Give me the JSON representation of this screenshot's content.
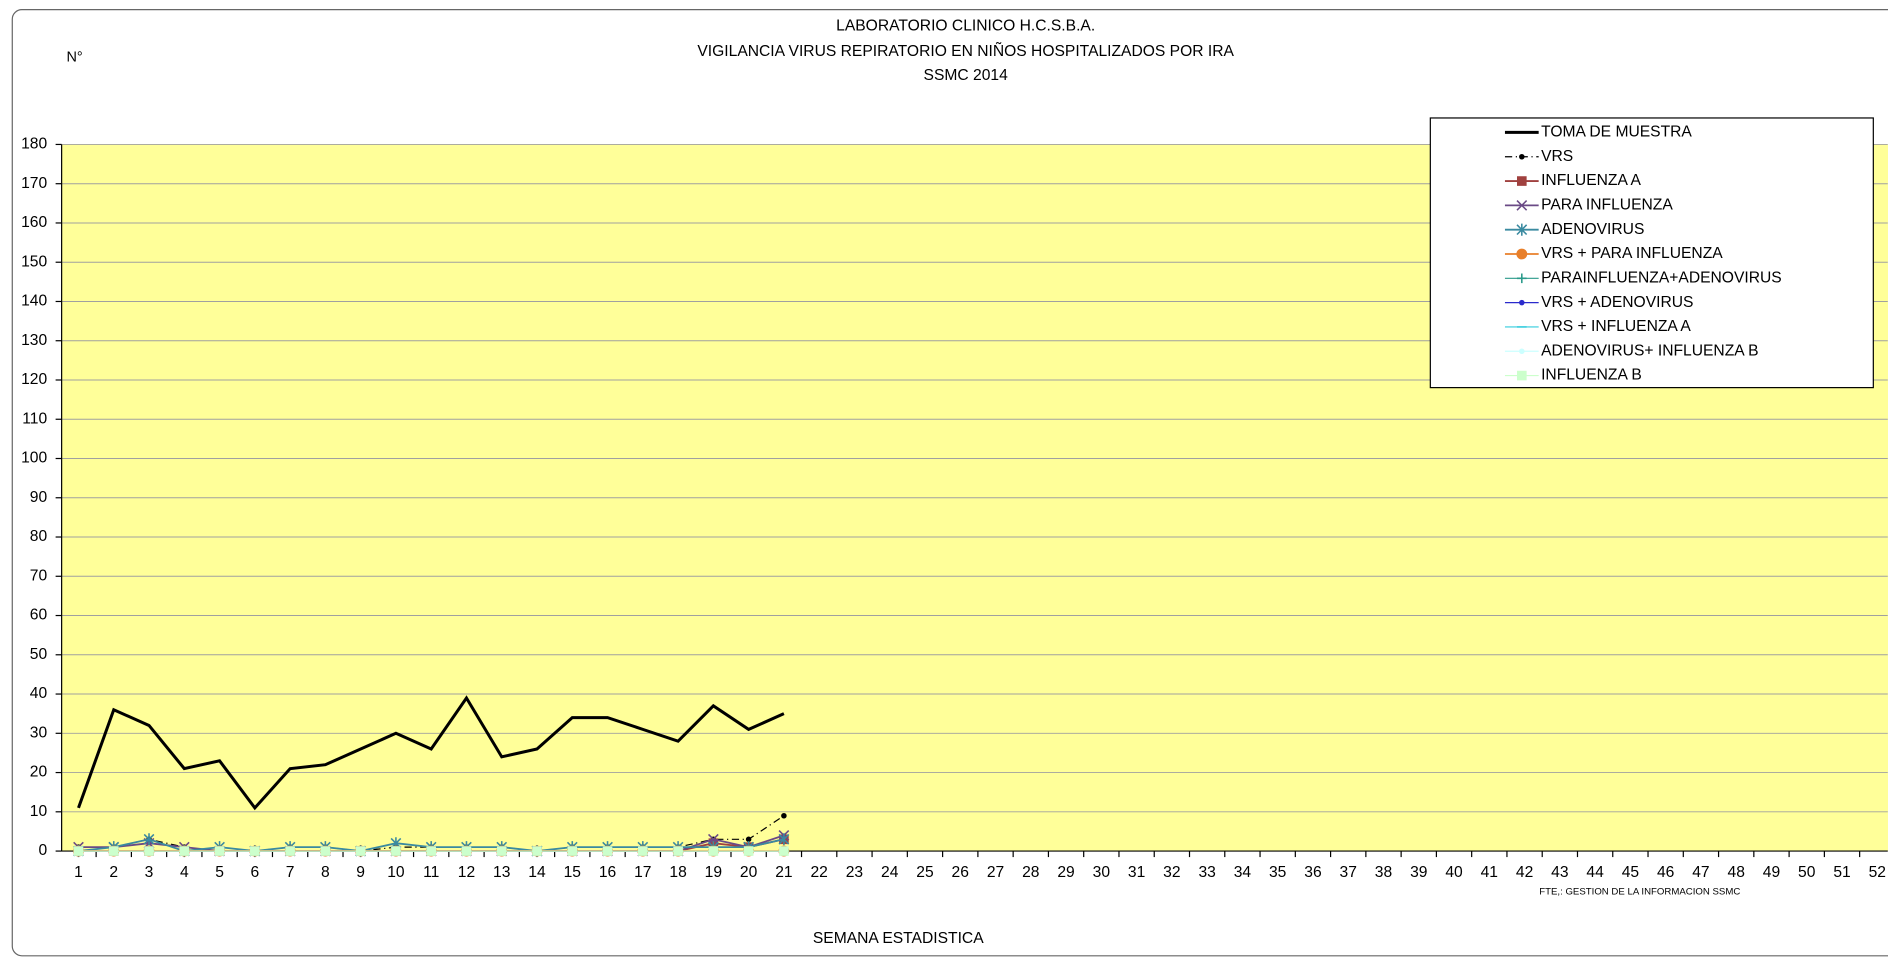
{
  "chart_data": {
    "type": "line",
    "title": [
      "LABORATORIO CLINICO H.C.S.B.A.",
      "VIGILANCIA VIRUS REPIRATORIO EN NIÑOS HOSPITALIZADOS POR IRA",
      "SSMC  2014"
    ],
    "ylabel": "N°",
    "xlabel": "SEMANA ESTADISTICA",
    "source": "FTE,: GESTION DE LA INFORMACION SSMC",
    "categories": [
      1,
      2,
      3,
      4,
      5,
      6,
      7,
      8,
      9,
      10,
      11,
      12,
      13,
      14,
      15,
      16,
      17,
      18,
      19,
      20,
      21,
      22,
      23,
      24,
      25,
      26,
      27,
      28,
      29,
      30,
      31,
      32,
      33,
      34,
      35,
      36,
      37,
      38,
      39,
      40,
      41,
      42,
      43,
      44,
      45,
      46,
      47,
      48,
      49,
      50,
      51,
      52
    ],
    "ylim": [
      0,
      180
    ],
    "yticks": [
      0,
      10,
      20,
      30,
      40,
      50,
      60,
      70,
      80,
      90,
      100,
      110,
      120,
      130,
      140,
      150,
      160,
      170,
      180
    ],
    "grid": true,
    "plot_background": "#ffff99",
    "series": [
      {
        "name": "TOMA DE MUESTRA",
        "color": "#000000",
        "values": [
          11,
          36,
          32,
          21,
          23,
          11,
          21,
          22,
          26,
          30,
          26,
          39,
          24,
          26,
          34,
          34,
          31,
          28,
          37,
          31,
          35,
          null,
          null,
          null,
          null,
          null,
          null,
          null,
          null,
          null,
          null,
          null,
          null,
          null,
          null,
          null,
          null,
          null,
          null,
          null,
          null,
          null,
          null,
          null,
          null,
          null,
          null,
          null,
          null,
          null,
          null,
          null
        ]
      },
      {
        "name": "VRS",
        "color": "#000000",
        "values": [
          1,
          1,
          3,
          1,
          0,
          0,
          1,
          1,
          0,
          1,
          1,
          1,
          1,
          0,
          1,
          1,
          1,
          1,
          3,
          3,
          9,
          null,
          null,
          null,
          null,
          null,
          null,
          null,
          null,
          null,
          null,
          null,
          null,
          null,
          null,
          null,
          null,
          null,
          null,
          null,
          null,
          null,
          null,
          null,
          null,
          null,
          null,
          null,
          null,
          null,
          null,
          null
        ]
      },
      {
        "name": "INFLUENZA A",
        "color": "#a0413f",
        "values": [
          0,
          0,
          0,
          0,
          0,
          0,
          0,
          0,
          0,
          0,
          0,
          0,
          0,
          0,
          0,
          0,
          0,
          0,
          2,
          1,
          3,
          null,
          null,
          null,
          null,
          null,
          null,
          null,
          null,
          null,
          null,
          null,
          null,
          null,
          null,
          null,
          null,
          null,
          null,
          null,
          null,
          null,
          null,
          null,
          null,
          null,
          null,
          null,
          null,
          null,
          null,
          null
        ]
      },
      {
        "name": "PARA INFLUENZA",
        "color": "#6a4a86",
        "values": [
          1,
          1,
          2,
          1,
          0,
          0,
          0,
          0,
          0,
          0,
          0,
          0,
          0,
          0,
          0,
          0,
          0,
          0,
          3,
          1,
          4,
          null,
          null,
          null,
          null,
          null,
          null,
          null,
          null,
          null,
          null,
          null,
          null,
          null,
          null,
          null,
          null,
          null,
          null,
          null,
          null,
          null,
          null,
          null,
          null,
          null,
          null,
          null,
          null,
          null,
          null,
          null
        ]
      },
      {
        "name": "ADENOVIRUS",
        "color": "#3a8aa0",
        "values": [
          0,
          1,
          3,
          0,
          1,
          0,
          1,
          1,
          0,
          2,
          1,
          1,
          1,
          0,
          1,
          1,
          1,
          1,
          1,
          1,
          3,
          null,
          null,
          null,
          null,
          null,
          null,
          null,
          null,
          null,
          null,
          null,
          null,
          null,
          null,
          null,
          null,
          null,
          null,
          null,
          null,
          null,
          null,
          null,
          null,
          null,
          null,
          null,
          null,
          null,
          null,
          null
        ]
      },
      {
        "name": "VRS + PARA INFLUENZA",
        "color": "#e87f2a",
        "values": [
          0,
          0,
          0,
          0,
          0,
          0,
          0,
          0,
          0,
          0,
          0,
          0,
          0,
          0,
          0,
          0,
          0,
          0,
          0,
          0,
          0,
          null,
          null,
          null,
          null,
          null,
          null,
          null,
          null,
          null,
          null,
          null,
          null,
          null,
          null,
          null,
          null,
          null,
          null,
          null,
          null,
          null,
          null,
          null,
          null,
          null,
          null,
          null,
          null,
          null,
          null,
          null
        ]
      },
      {
        "name": "PARAINFLUENZA+ADENOVIRUS",
        "color": "#2a9a8a",
        "values": [
          0,
          0,
          0,
          0,
          0,
          0,
          0,
          0,
          0,
          0,
          0,
          0,
          0,
          0,
          0,
          0,
          0,
          0,
          0,
          0,
          0,
          null,
          null,
          null,
          null,
          null,
          null,
          null,
          null,
          null,
          null,
          null,
          null,
          null,
          null,
          null,
          null,
          null,
          null,
          null,
          null,
          null,
          null,
          null,
          null,
          null,
          null,
          null,
          null,
          null,
          null,
          null
        ]
      },
      {
        "name": "VRS + ADENOVIRUS",
        "color": "#2a2acc",
        "values": [
          0,
          0,
          0,
          0,
          0,
          0,
          0,
          0,
          0,
          0,
          0,
          0,
          0,
          0,
          0,
          0,
          0,
          0,
          0,
          0,
          0,
          null,
          null,
          null,
          null,
          null,
          null,
          null,
          null,
          null,
          null,
          null,
          null,
          null,
          null,
          null,
          null,
          null,
          null,
          null,
          null,
          null,
          null,
          null,
          null,
          null,
          null,
          null,
          null,
          null,
          null,
          null
        ]
      },
      {
        "name": "VRS + INFLUENZA A",
        "color": "#33ccdd",
        "values": [
          0,
          0,
          0,
          0,
          0,
          0,
          0,
          0,
          0,
          0,
          0,
          0,
          0,
          0,
          0,
          0,
          0,
          0,
          0,
          0,
          0,
          null,
          null,
          null,
          null,
          null,
          null,
          null,
          null,
          null,
          null,
          null,
          null,
          null,
          null,
          null,
          null,
          null,
          null,
          null,
          null,
          null,
          null,
          null,
          null,
          null,
          null,
          null,
          null,
          null,
          null,
          null
        ]
      },
      {
        "name": "ADENOVIRUS+ INFLUENZA B",
        "color": "#ccffff",
        "values": [
          0,
          0,
          0,
          0,
          0,
          0,
          0,
          0,
          0,
          0,
          0,
          0,
          0,
          0,
          0,
          0,
          0,
          0,
          0,
          0,
          0,
          null,
          null,
          null,
          null,
          null,
          null,
          null,
          null,
          null,
          null,
          null,
          null,
          null,
          null,
          null,
          null,
          null,
          null,
          null,
          null,
          null,
          null,
          null,
          null,
          null,
          null,
          null,
          null,
          null,
          null,
          null
        ]
      },
      {
        "name": "INFLUENZA B",
        "color": "#ccffcc",
        "values": [
          0,
          0,
          0,
          0,
          0,
          0,
          0,
          0,
          0,
          0,
          0,
          0,
          0,
          0,
          0,
          0,
          0,
          0,
          0,
          0,
          0,
          null,
          null,
          null,
          null,
          null,
          null,
          null,
          null,
          null,
          null,
          null,
          null,
          null,
          null,
          null,
          null,
          null,
          null,
          null,
          null,
          null,
          null,
          null,
          null,
          null,
          null,
          null,
          null,
          null,
          null,
          null
        ]
      }
    ]
  }
}
